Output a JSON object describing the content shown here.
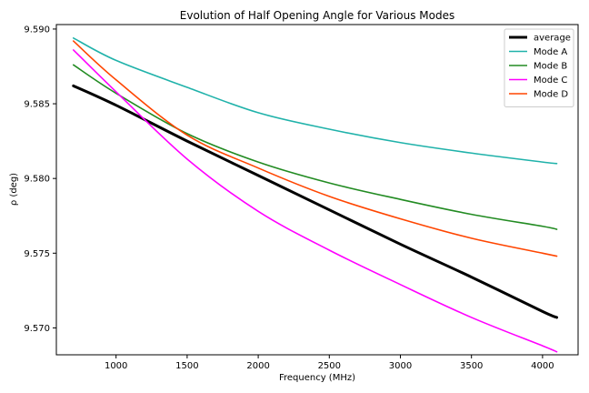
{
  "chart_data": {
    "type": "line",
    "title": "Evolution of Half Opening Angle for Various Modes",
    "xlabel": "Frequency (MHz)",
    "ylabel": "ρ (deg)",
    "xlim": [
      580,
      4250
    ],
    "ylim": [
      9.5682,
      9.5903
    ],
    "xticks": [
      1000,
      1500,
      2000,
      2500,
      3000,
      3500,
      4000
    ],
    "xtick_labels": [
      "1000",
      "1500",
      "2000",
      "2500",
      "3000",
      "3500",
      "4000"
    ],
    "yticks": [
      9.57,
      9.575,
      9.58,
      9.585,
      9.59
    ],
    "ytick_labels": [
      "9.570",
      "9.575",
      "9.580",
      "9.585",
      "9.590"
    ],
    "grid": false,
    "legend_position": "top-right",
    "series": [
      {
        "name": "average",
        "color": "#000000",
        "width": 3,
        "x": [
          700,
          1000,
          1500,
          2000,
          2500,
          3000,
          3500,
          4000,
          4100
        ],
        "values": [
          9.5862,
          9.5849,
          9.5825,
          9.5802,
          9.5779,
          9.5756,
          9.5734,
          9.5711,
          9.5707
        ]
      },
      {
        "name": "Mode A",
        "color": "#20b2aa",
        "width": 1.6,
        "x": [
          700,
          1000,
          1500,
          2000,
          2500,
          3000,
          3500,
          4000,
          4100
        ],
        "values": [
          9.5894,
          9.5879,
          9.5861,
          9.5844,
          9.5833,
          9.5824,
          9.5817,
          9.5811,
          9.581
        ]
      },
      {
        "name": "Mode B",
        "color": "#228b22",
        "width": 1.6,
        "x": [
          700,
          1000,
          1500,
          2000,
          2500,
          3000,
          3500,
          4000,
          4100
        ],
        "values": [
          9.5876,
          9.5857,
          9.583,
          9.5811,
          9.5797,
          9.5786,
          9.5776,
          9.5768,
          9.5766
        ]
      },
      {
        "name": "Mode C",
        "color": "#ff00ff",
        "width": 1.6,
        "x": [
          700,
          1000,
          1500,
          2000,
          2500,
          3000,
          3500,
          4000,
          4100
        ],
        "values": [
          9.5886,
          9.5858,
          9.5813,
          9.5778,
          9.5752,
          9.5729,
          9.5707,
          9.5688,
          9.5684
        ]
      },
      {
        "name": "Mode D",
        "color": "#ff4500",
        "width": 1.6,
        "x": [
          700,
          1000,
          1500,
          2000,
          2500,
          3000,
          3500,
          4000,
          4100
        ],
        "values": [
          9.5892,
          9.5866,
          9.5829,
          9.5807,
          9.5788,
          9.5773,
          9.576,
          9.575,
          9.5748
        ]
      }
    ]
  }
}
